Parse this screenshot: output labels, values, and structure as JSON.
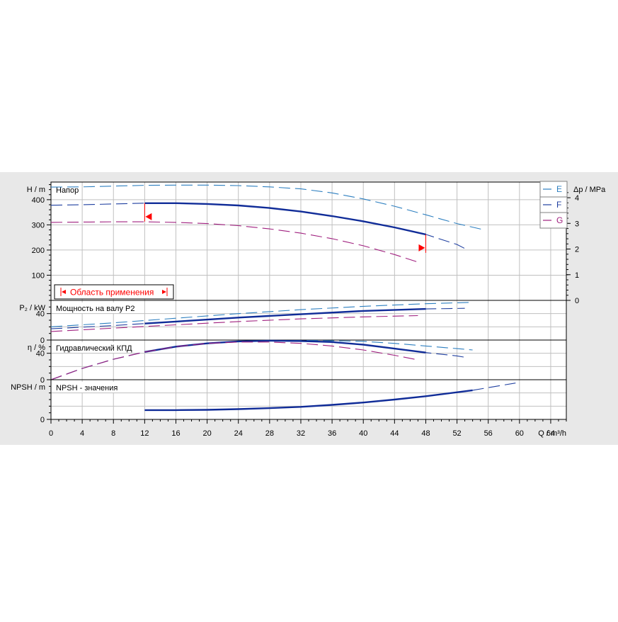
{
  "chart_data": {
    "type": "line",
    "x_axis": {
      "label": "Q / m³/h",
      "ticks": [
        0,
        4,
        8,
        12,
        16,
        20,
        24,
        28,
        32,
        36,
        40,
        44,
        48,
        52,
        56,
        60,
        64
      ],
      "range": [
        0,
        66
      ]
    },
    "legend": {
      "placement": "top-right",
      "entries": [
        {
          "label": "E",
          "color": "#2d7fc0"
        },
        {
          "label": "F",
          "color": "#1f3fa0"
        },
        {
          "label": "G",
          "color": "#a0207f"
        }
      ]
    },
    "colors": {
      "E": "#2d7fc0",
      "F": "#1f3fa0",
      "G": "#a0207f",
      "F_main": "#102c98",
      "marker": "#ff0000",
      "background": "#e8e8e8",
      "grid": "#c0c0c0"
    },
    "grid": true,
    "panels": [
      {
        "id": "head",
        "title": "Напор",
        "ylabel": "H / m",
        "ylim": [
          0,
          470
        ],
        "yticks": [
          100,
          200,
          300,
          400
        ],
        "right_axis": {
          "label": "Δp / MPa",
          "ticks": [
            0,
            1,
            2,
            3,
            4
          ],
          "ratio_m_per_unit": 101.97
        },
        "application_range_label": "Область применения",
        "application_range_q": [
          12,
          48
        ],
        "series": [
          {
            "name": "E",
            "style": "dashed",
            "x": [
              0,
              4,
              8,
              12,
              16,
              20,
              24,
              28,
              32,
              36,
              40,
              44,
              48,
              52,
              55.5
            ],
            "y": [
              450,
              451,
              454,
              457,
              458,
              458,
              456,
              451,
              443,
              427,
              403,
              374,
              340,
              305,
              280
            ]
          },
          {
            "name": "F",
            "style": "dashed",
            "x": [
              0,
              4,
              8,
              12,
              16,
              20,
              24,
              28,
              32,
              36,
              40,
              44,
              48,
              52,
              53.5
            ],
            "y": [
              378,
              380,
              383,
              386,
              386,
              383,
              377,
              367,
              353,
              335,
              314,
              290,
              262,
              222,
              198
            ]
          },
          {
            "name": "F",
            "style": "solid",
            "x": [
              12,
              16,
              20,
              24,
              28,
              32,
              36,
              40,
              44,
              48
            ],
            "y": [
              386,
              386,
              383,
              377,
              367,
              353,
              335,
              314,
              290,
              262
            ]
          },
          {
            "name": "G",
            "style": "dashed",
            "x": [
              0,
              4,
              8,
              12,
              16,
              20,
              24,
              28,
              32,
              36,
              40,
              44,
              47
            ],
            "y": [
              310,
              311,
              312,
              312,
              310,
              305,
              297,
              284,
              267,
              245,
              217,
              182,
              152
            ]
          }
        ]
      },
      {
        "id": "power",
        "title": "Мощность на валу P2",
        "ylabel": "P₂ / kW",
        "ylim": [
          0,
          60
        ],
        "yticks": [
          0,
          40
        ],
        "series": [
          {
            "name": "E",
            "style": "dashed",
            "x": [
              0,
              8,
              16,
              24,
              32,
              40,
              48,
              54
            ],
            "y": [
              20,
              26,
              33,
              40,
              46,
              51,
              55,
              57
            ]
          },
          {
            "name": "F",
            "style": "dashed",
            "x": [
              0,
              8,
              16,
              24,
              32,
              40,
              48,
              53
            ],
            "y": [
              17,
              22,
              28,
              34,
              39,
              44,
              47,
              48
            ]
          },
          {
            "name": "F",
            "style": "solid",
            "x": [
              12,
              16,
              24,
              32,
              40,
              48
            ],
            "y": [
              25,
              28,
              34,
              39,
              44,
              47
            ]
          },
          {
            "name": "G",
            "style": "dashed",
            "x": [
              0,
              8,
              16,
              24,
              32,
              40,
              47
            ],
            "y": [
              13,
              18,
              23,
              28,
              32,
              35,
              37
            ]
          }
        ]
      },
      {
        "id": "efficiency",
        "title": "Гидравлический КПД",
        "ylabel": "η / %",
        "ylim": [
          0,
          60
        ],
        "yticks": [
          0,
          40
        ],
        "series": [
          {
            "name": "E",
            "style": "dashed",
            "x": [
              0,
              4,
              8,
              12,
              16,
              20,
              24,
              28,
              32,
              36,
              40,
              44,
              48,
              52,
              54
            ],
            "y": [
              0,
              17,
              31,
              42,
              50,
              55,
              58,
              59,
              59.5,
              59,
              58,
              55,
              51,
              47,
              45
            ]
          },
          {
            "name": "F",
            "style": "dashed",
            "x": [
              0,
              4,
              8,
              12,
              16,
              20,
              24,
              28,
              32,
              36,
              40,
              44,
              48,
              52,
              53
            ],
            "y": [
              0,
              17,
              31,
              42,
              50,
              55,
              58,
              59,
              58.5,
              57,
              53,
              47,
              41,
              36,
              34
            ]
          },
          {
            "name": "F",
            "style": "solid",
            "x": [
              12,
              16,
              20,
              24,
              28,
              32,
              36,
              40,
              44,
              48
            ],
            "y": [
              42,
              50,
              55,
              58,
              59,
              58.5,
              57,
              53,
              47,
              41
            ]
          },
          {
            "name": "G",
            "style": "dashed",
            "x": [
              0,
              4,
              8,
              12,
              16,
              20,
              24,
              28,
              32,
              36,
              40,
              44,
              47
            ],
            "y": [
              0,
              17,
              31,
              42,
              50,
              55,
              57,
              57,
              55,
              51,
              45,
              37,
              30
            ]
          }
        ]
      },
      {
        "id": "npsh",
        "title": "NPSH - значения",
        "ylabel": "NPSH / m",
        "ylim": [
          0,
          60
        ],
        "yticks": [
          0
        ],
        "series": [
          {
            "name": "F",
            "style": "solid",
            "x": [
              12,
              16,
              20,
              24,
              28,
              32,
              36,
              40,
              44,
              48,
              54
            ],
            "y": [
              14,
              14,
              14.5,
              15.5,
              17,
              19,
              22,
              25.5,
              30,
              35,
              44
            ]
          },
          {
            "name": "F",
            "style": "dashed",
            "x": [
              54,
              57,
              59.5
            ],
            "y": [
              44,
              50,
              55
            ]
          }
        ]
      }
    ]
  }
}
